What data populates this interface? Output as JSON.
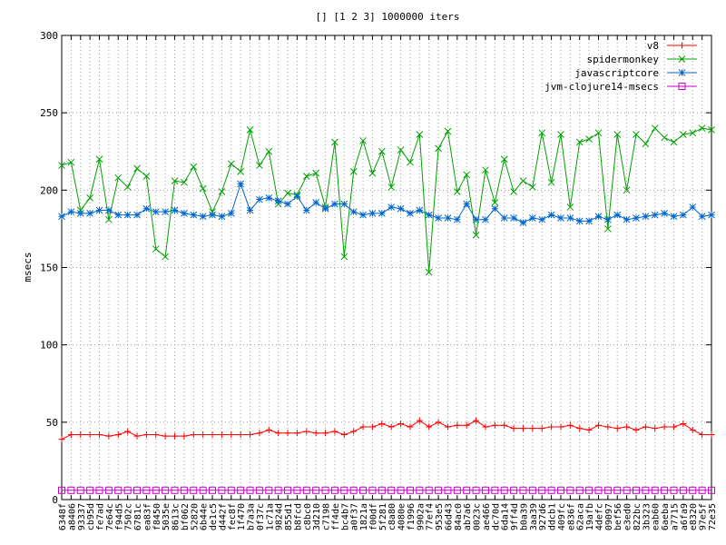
{
  "chart_data": {
    "type": "line",
    "title": "[] [1 2 3] 1000000 iters",
    "xlabel": "",
    "ylabel": "msecs",
    "ylim": [
      0,
      300
    ],
    "yticks": [
      0,
      50,
      100,
      150,
      200,
      250,
      300
    ],
    "grid": true,
    "legend_position": "top-right",
    "categories": [
      "6348f",
      "a8406",
      "93337",
      "cb95d",
      "fe7ad",
      "7e64c",
      "f94d5",
      "7502c",
      "6781c",
      "ea83f",
      "f8450",
      "5035e",
      "8613c",
      "bf062",
      "52820",
      "6b44e",
      "de1c5",
      "d442f",
      "fec8f",
      "1f470",
      "b7a3a",
      "0f37c",
      "1c71a",
      "9824d",
      "855d1",
      "b8fcd",
      "c8bc0",
      "3d210",
      "c7198",
      "ff4de",
      "bc4b7",
      "a0f37",
      "1821a",
      "f00df",
      "5f281",
      "c8a80",
      "4080e",
      "f1996",
      "9902a",
      "77ef4",
      "953e5",
      "66d43",
      "84ac0",
      "ab7a6",
      "0023c",
      "ae466",
      "dc70d",
      "6da14",
      "9ff4d",
      "b0a39",
      "3aa39",
      "927d6",
      "ddcb1",
      "409fc",
      "e836f",
      "62aca",
      "19afb",
      "4defc",
      "09097",
      "bef56",
      "e3ed0",
      "822bc",
      "3b323",
      "eab60",
      "6aeba",
      "a7715",
      "a6fa9",
      "e8320",
      "97e5f",
      "72e35"
    ],
    "series": [
      {
        "name": "v8",
        "color": "#ff0000",
        "marker": "plus",
        "values": [
          39,
          42,
          42,
          42,
          42,
          41,
          42,
          44,
          41,
          42,
          42,
          41,
          41,
          41,
          42,
          42,
          42,
          42,
          42,
          42,
          42,
          43,
          45,
          43,
          43,
          43,
          44,
          43,
          43,
          44,
          42,
          44,
          47,
          47,
          49,
          47,
          49,
          47,
          51,
          47,
          50,
          47,
          48,
          48,
          51,
          47,
          48,
          48,
          46,
          46,
          46,
          46,
          47,
          47,
          48,
          46,
          45,
          48,
          47,
          46,
          47,
          45,
          47,
          46,
          47,
          47,
          49,
          45,
          42,
          42
        ]
      },
      {
        "name": "spidermonkey",
        "color": "#00a000",
        "marker": "cross",
        "values": [
          216,
          218,
          187,
          195,
          220,
          181,
          208,
          202,
          214,
          209,
          162,
          157,
          206,
          205,
          215,
          201,
          186,
          199,
          217,
          212,
          239,
          216,
          225,
          191,
          198,
          197,
          209,
          211,
          189,
          231,
          157,
          212,
          232,
          211,
          225,
          202,
          226,
          218,
          236,
          147,
          227,
          238,
          199,
          210,
          171,
          213,
          192,
          220,
          199,
          206,
          202,
          237,
          205,
          236,
          189,
          231,
          233,
          237,
          175,
          236,
          200,
          236,
          230,
          240,
          234,
          231,
          236,
          237,
          240,
          239
        ]
      },
      {
        "name": "javascriptcore",
        "color": "#0066cc",
        "marker": "star",
        "values": [
          183,
          186,
          185,
          185,
          187,
          187,
          184,
          184,
          184,
          188,
          186,
          186,
          187,
          185,
          184,
          183,
          184,
          183,
          185,
          204,
          187,
          194,
          195,
          193,
          191,
          196,
          187,
          192,
          188,
          191,
          191,
          186,
          184,
          185,
          185,
          189,
          188,
          185,
          187,
          184,
          182,
          182,
          181,
          191,
          181,
          181,
          188,
          182,
          182,
          179,
          182,
          181,
          184,
          182,
          182,
          180,
          180,
          183,
          181,
          184,
          181,
          182,
          183,
          184,
          185,
          183,
          184,
          189,
          183,
          184
        ]
      },
      {
        "name": "jvm-clojure14-msecs",
        "color": "#cc00cc",
        "marker": "square",
        "values": [
          6,
          6,
          6,
          6,
          6,
          6,
          6,
          6,
          6,
          6,
          6,
          6,
          6,
          6,
          6,
          6,
          6,
          6,
          6,
          6,
          6,
          6,
          6,
          6,
          6,
          6,
          6,
          6,
          6,
          6,
          6,
          6,
          6,
          6,
          6,
          6,
          6,
          6,
          6,
          6,
          6,
          6,
          6,
          6,
          6,
          6,
          6,
          6,
          6,
          6,
          6,
          6,
          6,
          6,
          6,
          6,
          6,
          6,
          6,
          6,
          6,
          6,
          6,
          6,
          6,
          6,
          6,
          6,
          6,
          6
        ]
      }
    ]
  }
}
